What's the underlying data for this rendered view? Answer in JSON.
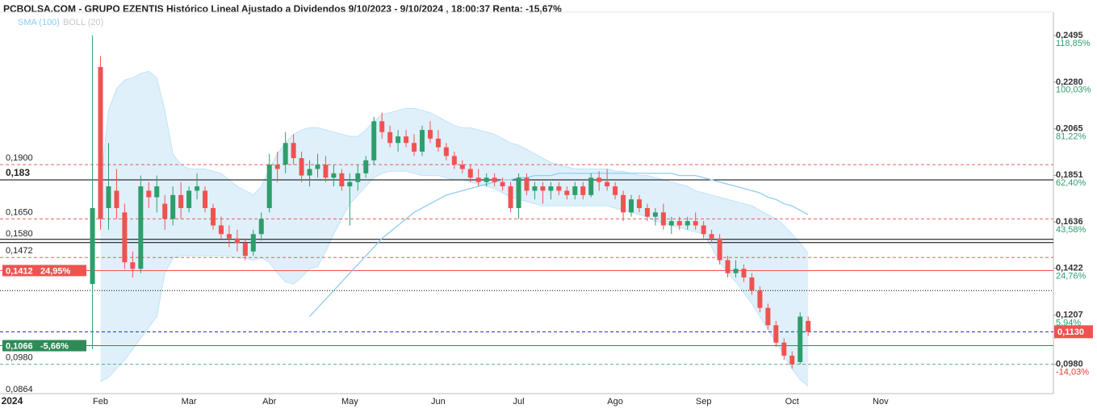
{
  "chart_data": {
    "type": "candlestick",
    "title": "PCBOLSA.COM - GRUPO EZENTIS Histórico Lineal Ajustado a Dividendos 9/10/2023 - 9/10/2024 , 18:00:37 Renta: -15,67%",
    "categories": [
      null,
      "2024",
      null,
      null,
      null,
      null,
      null,
      null,
      null,
      null,
      null,
      null,
      "Feb",
      null,
      null,
      null,
      null,
      null,
      null,
      null,
      null,
      null,
      null,
      "Mar",
      null,
      null,
      null,
      null,
      null,
      null,
      null,
      null,
      null,
      "Abr",
      null,
      null,
      null,
      null,
      null,
      null,
      null,
      null,
      null,
      "May",
      null,
      null,
      null,
      null,
      null,
      null,
      null,
      null,
      null,
      null,
      "Jun",
      null,
      null,
      null,
      null,
      null,
      null,
      null,
      null,
      null,
      "Jul",
      null,
      null,
      null,
      null,
      null,
      null,
      null,
      null,
      null,
      null,
      null,
      "Ago",
      null,
      null,
      null,
      null,
      null,
      null,
      null,
      null,
      null,
      null,
      "Sep",
      null,
      null,
      null,
      null,
      null,
      null,
      null,
      null,
      null,
      null,
      "Oct",
      null,
      null,
      null,
      null,
      null,
      null,
      null,
      null,
      null,
      null,
      "Nov",
      null,
      null,
      null,
      null,
      null,
      null,
      null,
      null,
      null,
      null,
      null,
      null,
      null,
      null,
      null,
      null,
      null,
      null,
      null,
      null,
      null
    ],
    "ohlc": {
      "up_color": "#2e9e6b",
      "down_color": "#ef5350",
      "open": [
        null,
        null,
        null,
        null,
        null,
        null,
        null,
        null,
        null,
        null,
        null,
        0.135,
        0.235,
        0.17,
        0.178,
        0.168,
        0.145,
        0.142,
        0.178,
        0.175,
        0.172,
        0.165,
        0.176,
        0.17,
        0.178,
        0.178,
        0.17,
        0.162,
        0.158,
        0.156,
        0.154,
        0.15,
        0.158,
        0.17,
        0.19,
        0.19,
        0.2,
        0.193,
        0.185,
        0.188,
        0.19,
        0.184,
        0.186,
        0.18,
        0.182,
        0.186,
        0.192,
        0.21,
        0.205,
        0.2,
        0.203,
        0.2,
        0.196,
        0.206,
        0.202,
        0.198,
        0.194,
        0.19,
        0.188,
        0.184,
        0.182,
        0.184,
        0.182,
        0.18,
        0.17,
        0.184,
        0.178,
        0.18,
        0.178,
        0.18,
        0.178,
        0.176,
        0.18,
        0.176,
        0.184,
        0.182,
        0.18,
        0.176,
        0.168,
        0.174,
        0.17,
        0.166,
        0.168,
        0.162,
        0.164,
        0.162,
        0.164,
        0.162,
        0.158,
        0.156,
        0.146,
        0.14,
        0.142,
        0.138,
        0.132,
        0.124,
        0.116,
        0.108,
        0.102,
        0.099,
        0.118,
        null,
        null,
        null,
        null,
        null,
        null,
        null,
        null,
        null,
        null,
        null,
        null,
        null,
        null,
        null,
        null,
        null,
        null,
        null,
        null,
        null,
        null,
        null,
        null,
        null,
        null,
        null,
        null,
        null,
        null
      ],
      "high": [
        null,
        null,
        null,
        null,
        null,
        null,
        null,
        null,
        null,
        null,
        null,
        0.2495,
        0.24,
        0.2,
        0.188,
        0.172,
        0.15,
        0.185,
        0.182,
        0.185,
        0.176,
        0.18,
        0.182,
        0.18,
        0.186,
        0.18,
        0.172,
        0.166,
        0.162,
        0.16,
        0.156,
        0.16,
        0.168,
        0.195,
        0.196,
        0.205,
        0.204,
        0.196,
        0.192,
        0.195,
        0.194,
        0.19,
        0.188,
        0.186,
        0.19,
        0.194,
        0.212,
        0.214,
        0.208,
        0.206,
        0.206,
        0.204,
        0.208,
        0.21,
        0.206,
        0.2,
        0.196,
        0.192,
        0.19,
        0.188,
        0.186,
        0.186,
        0.184,
        0.182,
        0.186,
        0.186,
        0.182,
        0.182,
        0.182,
        0.182,
        0.18,
        0.182,
        0.182,
        0.186,
        0.187,
        0.188,
        0.182,
        0.178,
        0.176,
        0.176,
        0.172,
        0.17,
        0.172,
        0.166,
        0.166,
        0.166,
        0.168,
        0.164,
        0.16,
        0.158,
        0.148,
        0.146,
        0.144,
        0.14,
        0.134,
        0.126,
        0.118,
        0.11,
        0.104,
        0.122,
        0.12,
        null,
        null,
        null,
        null,
        null,
        null,
        null,
        null,
        null,
        null,
        null,
        null,
        null,
        null,
        null,
        null,
        null,
        null,
        null,
        null,
        null,
        null,
        null,
        null,
        null,
        null,
        null,
        null,
        null,
        null
      ],
      "low": [
        null,
        null,
        null,
        null,
        null,
        null,
        null,
        null,
        null,
        null,
        null,
        0.105,
        0.16,
        0.16,
        0.165,
        0.142,
        0.138,
        0.14,
        0.17,
        0.168,
        0.16,
        0.162,
        0.165,
        0.168,
        0.174,
        0.168,
        0.16,
        0.156,
        0.152,
        0.15,
        0.146,
        0.148,
        0.155,
        0.168,
        0.182,
        0.186,
        0.19,
        0.182,
        0.18,
        0.184,
        0.182,
        0.18,
        0.178,
        0.162,
        0.178,
        0.184,
        0.19,
        0.202,
        0.198,
        0.196,
        0.198,
        0.194,
        0.194,
        0.2,
        0.196,
        0.192,
        0.188,
        0.186,
        0.182,
        0.18,
        0.18,
        0.18,
        0.178,
        0.168,
        0.165,
        0.176,
        0.174,
        0.172,
        0.174,
        0.176,
        0.174,
        0.174,
        0.174,
        0.175,
        0.178,
        0.178,
        0.174,
        0.164,
        0.166,
        0.168,
        0.164,
        0.162,
        0.16,
        0.158,
        0.16,
        0.16,
        0.16,
        0.156,
        0.154,
        0.144,
        0.138,
        0.138,
        0.136,
        0.13,
        0.122,
        0.114,
        0.106,
        0.1,
        0.096,
        0.098,
        0.111,
        null,
        null,
        null,
        null,
        null,
        null,
        null,
        null,
        null,
        null,
        null,
        null,
        null,
        null,
        null,
        null,
        null,
        null,
        null,
        null,
        null,
        null,
        null,
        null,
        null,
        null,
        null,
        null,
        null,
        null
      ],
      "close": [
        null,
        null,
        null,
        null,
        null,
        null,
        null,
        null,
        null,
        null,
        null,
        0.17,
        0.165,
        0.18,
        0.17,
        0.145,
        0.142,
        0.18,
        0.175,
        0.18,
        0.165,
        0.176,
        0.17,
        0.178,
        0.18,
        0.17,
        0.162,
        0.158,
        0.156,
        0.154,
        0.148,
        0.158,
        0.165,
        0.19,
        0.188,
        0.2,
        0.193,
        0.185,
        0.188,
        0.19,
        0.184,
        0.186,
        0.18,
        0.182,
        0.186,
        0.192,
        0.21,
        0.205,
        0.2,
        0.203,
        0.2,
        0.196,
        0.206,
        0.202,
        0.198,
        0.194,
        0.19,
        0.188,
        0.184,
        0.182,
        0.184,
        0.182,
        0.18,
        0.17,
        0.184,
        0.178,
        0.18,
        0.178,
        0.18,
        0.178,
        0.176,
        0.18,
        0.176,
        0.184,
        0.182,
        0.18,
        0.176,
        0.168,
        0.174,
        0.17,
        0.166,
        0.168,
        0.162,
        0.164,
        0.162,
        0.164,
        0.162,
        0.158,
        0.156,
        0.146,
        0.14,
        0.142,
        0.138,
        0.132,
        0.124,
        0.116,
        0.108,
        0.102,
        0.098,
        0.12,
        0.113,
        null,
        null,
        null,
        null,
        null,
        null,
        null,
        null,
        null,
        null,
        null,
        null,
        null,
        null,
        null,
        null,
        null,
        null,
        null,
        null,
        null,
        null,
        null,
        null,
        null,
        null,
        null,
        null,
        null,
        null
      ]
    },
    "series": [
      {
        "name": "SMA (100)",
        "color": "#8ecdf0",
        "values": [
          null,
          null,
          null,
          null,
          null,
          null,
          null,
          null,
          null,
          null,
          null,
          null,
          null,
          null,
          null,
          null,
          null,
          null,
          null,
          null,
          null,
          null,
          null,
          null,
          null,
          null,
          null,
          null,
          null,
          null,
          null,
          null,
          null,
          null,
          null,
          null,
          null,
          null,
          0.12,
          0.124,
          0.128,
          0.132,
          0.136,
          0.14,
          0.144,
          0.148,
          0.152,
          0.156,
          0.159,
          0.162,
          0.165,
          0.168,
          0.17,
          0.172,
          0.174,
          0.176,
          0.177,
          0.178,
          0.179,
          0.18,
          0.181,
          0.182,
          0.183,
          0.183,
          0.184,
          0.184,
          0.185,
          0.185,
          0.185,
          0.186,
          0.186,
          0.186,
          0.186,
          0.186,
          0.186,
          0.186,
          0.186,
          0.186,
          0.186,
          0.186,
          0.186,
          0.186,
          0.186,
          0.186,
          0.185,
          0.185,
          0.185,
          0.184,
          0.183,
          0.182,
          0.181,
          0.18,
          0.179,
          0.178,
          0.177,
          0.175,
          0.174,
          0.172,
          0.171,
          0.169,
          0.167,
          null,
          null,
          null,
          null,
          null,
          null,
          null,
          null,
          null,
          null,
          null,
          null,
          null,
          null,
          null,
          null,
          null,
          null,
          null,
          null,
          null,
          null,
          null,
          null,
          null,
          null,
          null,
          null,
          null,
          null
        ]
      },
      {
        "name": "BOLL (20)",
        "color": "#c8c8c8",
        "fill": "#dff0fb",
        "upper": [
          null,
          null,
          null,
          null,
          null,
          null,
          null,
          null,
          null,
          null,
          null,
          null,
          0.18,
          0.215,
          0.225,
          0.229,
          0.23,
          0.232,
          0.233,
          0.23,
          0.215,
          0.195,
          0.19,
          0.188,
          0.188,
          0.188,
          0.187,
          0.186,
          0.183,
          0.18,
          0.178,
          0.176,
          0.18,
          0.188,
          0.195,
          0.2,
          0.204,
          0.206,
          0.207,
          0.207,
          0.206,
          0.205,
          0.204,
          0.203,
          0.203,
          0.206,
          0.21,
          0.213,
          0.214,
          0.215,
          0.216,
          0.216,
          0.215,
          0.214,
          0.212,
          0.21,
          0.208,
          0.207,
          0.207,
          0.206,
          0.205,
          0.204,
          0.202,
          0.2,
          0.199,
          0.197,
          0.195,
          0.193,
          0.191,
          0.19,
          0.189,
          0.188,
          0.188,
          0.188,
          0.188,
          0.188,
          0.187,
          0.187,
          0.186,
          0.185,
          0.185,
          0.184,
          0.183,
          0.182,
          0.181,
          0.18,
          0.178,
          0.177,
          0.176,
          0.175,
          0.174,
          0.173,
          0.172,
          0.171,
          0.169,
          0.167,
          0.165,
          0.162,
          0.158,
          0.154,
          0.149,
          null,
          null,
          null,
          null,
          null,
          null,
          null,
          null,
          null,
          null,
          null,
          null,
          null,
          null,
          null,
          null,
          null,
          null,
          null,
          null,
          null,
          null,
          null,
          null,
          null,
          null,
          null,
          null,
          null,
          null
        ],
        "lower": [
          null,
          null,
          null,
          null,
          null,
          null,
          null,
          null,
          null,
          null,
          null,
          null,
          0.09,
          0.092,
          0.096,
          0.1,
          0.105,
          0.11,
          0.115,
          0.12,
          0.14,
          0.147,
          0.148,
          0.148,
          0.148,
          0.148,
          0.148,
          0.148,
          0.148,
          0.147,
          0.147,
          0.146,
          0.147,
          0.145,
          0.14,
          0.136,
          0.135,
          0.138,
          0.142,
          0.143,
          0.15,
          0.158,
          0.165,
          0.172,
          0.176,
          0.18,
          0.184,
          0.186,
          0.187,
          0.187,
          0.187,
          0.186,
          0.185,
          0.185,
          0.185,
          0.184,
          0.183,
          0.183,
          0.182,
          0.181,
          0.18,
          0.179,
          0.177,
          0.175,
          0.174,
          0.173,
          0.172,
          0.171,
          0.171,
          0.171,
          0.171,
          0.171,
          0.171,
          0.171,
          0.171,
          0.171,
          0.17,
          0.169,
          0.168,
          0.167,
          0.166,
          0.164,
          0.163,
          0.162,
          0.161,
          0.16,
          0.159,
          0.158,
          0.152,
          0.145,
          0.14,
          0.136,
          0.131,
          0.126,
          0.12,
          0.114,
          0.108,
          0.102,
          0.096,
          0.091,
          0.088,
          null,
          null,
          null,
          null,
          null,
          null,
          null,
          null,
          null,
          null,
          null,
          null,
          null,
          null,
          null,
          null,
          null,
          null,
          null,
          null,
          null,
          null,
          null,
          null,
          null,
          null,
          null,
          null,
          null,
          null
        ]
      }
    ],
    "ylim": [
      0.0845,
      0.2603
    ],
    "yticks": [
      {
        "value": 0.2495,
        "label": "0,2495"
      },
      {
        "value": 0.228,
        "label": "0,2280"
      },
      {
        "value": 0.2065,
        "label": "0,2065"
      },
      {
        "value": 0.1851,
        "label": "0,1851"
      },
      {
        "value": 0.1636,
        "label": "0,1636"
      },
      {
        "value": 0.1422,
        "label": "0,1422"
      },
      {
        "value": 0.1207,
        "label": "0,1207"
      },
      {
        "value": 0.098,
        "label": "0,0980"
      }
    ],
    "y2lim": [
      -25.88,
      128.31
    ],
    "y2ticks": [
      {
        "value": 118.85,
        "label": "118,85%"
      },
      {
        "value": 100.03,
        "label": "100,03%"
      },
      {
        "value": 81.22,
        "label": "81,22%"
      },
      {
        "value": 62.4,
        "label": "62,40%"
      },
      {
        "value": 43.58,
        "label": "43,58%"
      },
      {
        "value": 24.76,
        "label": "24,76%"
      },
      {
        "value": 5.94,
        "label": "5,94%"
      },
      {
        "value": -14.03,
        "label": "-14,03%"
      }
    ],
    "levels": [
      {
        "value": 0.19,
        "label": "0,1900",
        "color": "#e53935",
        "style": "dashed"
      },
      {
        "value": 0.183,
        "label": "0,183",
        "color": "#000000",
        "style": "solid",
        "bold": true
      },
      {
        "value": 0.165,
        "label": "0,1650",
        "color": "#e53935",
        "style": "dashed"
      },
      {
        "value": 0.158,
        "label": "0,1580",
        "color": "#000000",
        "style": "none"
      },
      {
        "value": 0.1556,
        "color": "#000000",
        "style": "solid"
      },
      {
        "value": 0.1541,
        "color": "#000000",
        "style": "solid"
      },
      {
        "value": 0.1472,
        "label": "0,1472",
        "color": "#e53935",
        "style": "dashed"
      },
      {
        "value": 0.1412,
        "label": "0,1412",
        "change_label": "24,95%",
        "color": "#ef5350",
        "style": "solid",
        "box": true
      },
      {
        "value": 0.132,
        "color": "#000000",
        "style": "dotted"
      },
      {
        "value": 0.1066,
        "label": "0,1066",
        "change_label": "-5,66%",
        "color": "#2e8b57",
        "style": "solid",
        "box": true
      },
      {
        "value": 0.098,
        "label": "0,0980",
        "color": "#2e9e6b",
        "style": "dashed"
      },
      {
        "value": 0.0864,
        "label": "0,0864",
        "color": "#000000",
        "style": "none"
      }
    ],
    "last_price": {
      "value": 0.113,
      "label": "0,1130",
      "color": "#ef5350",
      "line_color": "#1a2fb0"
    }
  }
}
